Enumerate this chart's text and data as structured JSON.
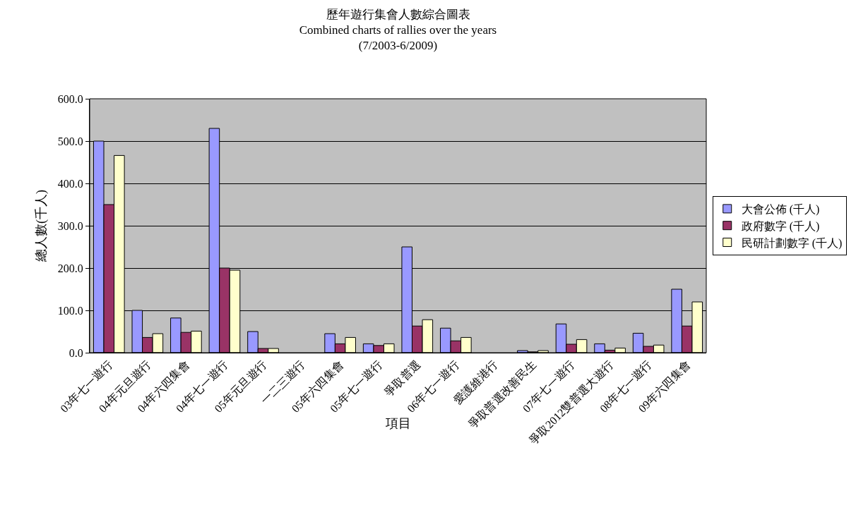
{
  "chart_data": {
    "type": "bar",
    "title": "歷年遊行集會人數綜合圖表\nCombined charts of rallies over the years\n(7/2003-6/2009)",
    "xlabel": "項目",
    "ylabel": "總人數(千人)",
    "categories": [
      "03年七一遊行",
      "04年元旦遊行",
      "04年六四集會",
      "04年七一遊行",
      "05年元旦遊行",
      "一二三遊行",
      "05年六四集會",
      "05年七一遊行",
      "爭取普選",
      "06年七一遊行",
      "愛護維港行",
      "爭取普選改善民生",
      "07年七一遊行",
      "爭取2012雙普選大遊行",
      "08年七一遊行",
      "09年六四集會"
    ],
    "series": [
      {
        "name": "大會公佈 (千人)",
        "color": "#9999ff",
        "values": [
          500,
          100,
          82,
          530,
          50,
          null,
          45,
          21,
          250,
          58,
          null,
          5,
          68,
          21,
          46,
          150
        ]
      },
      {
        "name": "政府數字 (千人)",
        "color": "#993366",
        "values": [
          350,
          36,
          48,
          200,
          10,
          null,
          21,
          17,
          63,
          28,
          null,
          2,
          20,
          6,
          15,
          63
        ]
      },
      {
        "name": "民研計劃數字 (千人)",
        "color": "#ffffcc",
        "values": [
          466,
          45,
          51,
          195,
          10,
          null,
          36,
          21,
          78,
          36,
          null,
          5,
          31,
          11,
          18,
          120
        ]
      }
    ],
    "ylim": [
      0,
      600
    ],
    "yticks": [
      {
        "value": 0,
        "label": "0.0"
      },
      {
        "value": 100,
        "label": "100.0"
      },
      {
        "value": 200,
        "label": "200.0"
      },
      {
        "value": 300,
        "label": "300.0"
      },
      {
        "value": 400,
        "label": "400.0"
      },
      {
        "value": 500,
        "label": "500.0"
      },
      {
        "value": 600,
        "label": "600.0"
      }
    ],
    "grid": "y",
    "legend": "right"
  }
}
